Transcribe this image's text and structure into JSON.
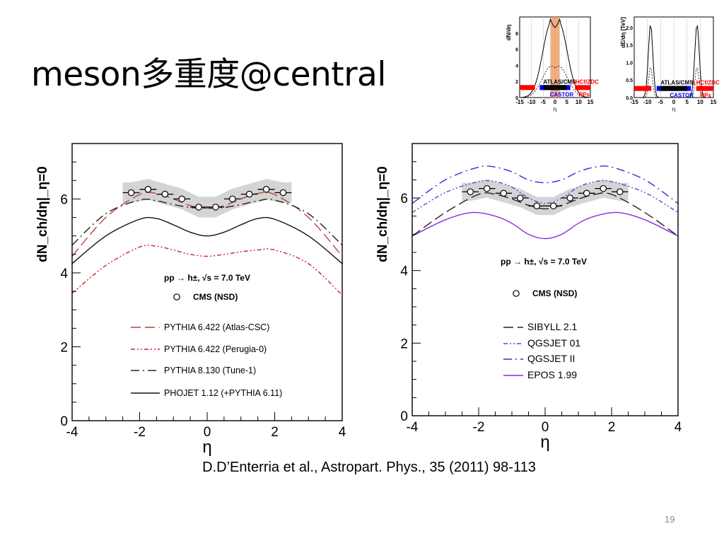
{
  "slide": {
    "title": "meson多重度@central",
    "caption": "D.D’Enterria et al., Astropart. Phys., 35 (2011) 98-113",
    "page_number": "19"
  },
  "inset": {
    "left": {
      "ylabel": "dN/dη",
      "xlabel": "η",
      "xticks": [
        "-15",
        "-10",
        "-5",
        "0",
        "5",
        "10",
        "15"
      ],
      "yticks": [
        "0",
        "2",
        "4",
        "6",
        "8"
      ],
      "labels": [
        "ATLAS/CMS",
        "LHCf/ZDC",
        "CASTOR",
        "RPs"
      ]
    },
    "right": {
      "ylabel": "dE/dη [TeV]",
      "xlabel": "η",
      "xticks": [
        "-15",
        "-10",
        "-5",
        "0",
        "5",
        "10",
        "15"
      ],
      "yticks": [
        "0.0",
        "0.5",
        "1.0",
        "1.5",
        "2.0"
      ],
      "labels": [
        "ATLAS/CMS",
        "LHCf/ZDC",
        "CASTOR",
        "RPs"
      ]
    },
    "colors": {
      "central_band": "#e8955a",
      "forward": "#ff0000",
      "castor": "#0000ff",
      "central": "#000000"
    }
  },
  "chart_data": [
    {
      "type": "line",
      "xlabel": "η",
      "ylabel": "dN_ch/dη|_η=0",
      "xlim": [
        -4,
        4
      ],
      "ylim": [
        0,
        7.5
      ],
      "xticks": [
        "-4",
        "-2",
        "0",
        "2",
        "4"
      ],
      "yticks": [
        "0",
        "2",
        "4",
        "6"
      ],
      "annotation": "pp → h±, √s = 7.0 TeV",
      "data_series": {
        "name": "CMS (NSD)",
        "x": [
          -2.25,
          -1.75,
          -1.25,
          -0.75,
          -0.25,
          0.25,
          0.75,
          1.25,
          1.75,
          2.25
        ],
        "y": [
          6.17,
          6.26,
          6.13,
          6.0,
          5.78,
          5.78,
          6.0,
          6.13,
          6.26,
          6.17
        ],
        "band": 0.28
      },
      "series": [
        {
          "name": "PYTHIA 6.422 (Atlas-CSC)",
          "color": "#b5473a",
          "style": "long-dash",
          "x": [
            -4,
            -3,
            -2,
            -1.5,
            -1,
            -0.5,
            0,
            0.5,
            1,
            1.5,
            2,
            3,
            4
          ],
          "y": [
            4.45,
            5.5,
            6.12,
            6.15,
            6.0,
            5.82,
            5.75,
            5.82,
            6.0,
            6.15,
            6.12,
            5.5,
            4.45
          ]
        },
        {
          "name": "PYTHIA 6.422 (Perugia-0)",
          "color": "#d0202a",
          "style": "dash-dot-dot",
          "x": [
            -4,
            -3,
            -2,
            -1.5,
            -1,
            -0.5,
            0,
            0.5,
            1,
            1.5,
            2,
            3,
            4
          ],
          "y": [
            3.45,
            4.2,
            4.7,
            4.72,
            4.62,
            4.5,
            4.45,
            4.5,
            4.57,
            4.62,
            4.62,
            4.25,
            3.4
          ]
        },
        {
          "name": "PYTHIA 8.130 (Tune-1)",
          "color": "#222222",
          "style": "dash-dot",
          "x": [
            -4,
            -3,
            -2,
            -1.5,
            -1,
            -0.5,
            0,
            0.5,
            1,
            1.5,
            2,
            3,
            4
          ],
          "y": [
            4.75,
            5.6,
            5.97,
            5.95,
            5.85,
            5.77,
            5.75,
            5.77,
            5.85,
            5.95,
            5.97,
            5.6,
            4.75
          ]
        },
        {
          "name": "PHOJET 1.12 (+PYTHIA 6.11)",
          "color": "#111111",
          "style": "solid",
          "x": [
            -4,
            -3,
            -2,
            -1.5,
            -1,
            -0.5,
            0,
            0.5,
            1,
            1.5,
            2,
            3,
            4
          ],
          "y": [
            4.25,
            5.0,
            5.45,
            5.47,
            5.3,
            5.1,
            5.0,
            5.1,
            5.3,
            5.47,
            5.45,
            5.0,
            4.25
          ]
        }
      ]
    },
    {
      "type": "line",
      "xlabel": "η",
      "ylabel": "dN_ch/dη|_η=0",
      "xlim": [
        -4,
        4
      ],
      "ylim": [
        0,
        7.5
      ],
      "xticks": [
        "-4",
        "-2",
        "0",
        "2",
        "4"
      ],
      "yticks": [
        "0",
        "2",
        "4",
        "6"
      ],
      "annotation": "pp → h±, √s = 7.0 TeV",
      "data_series": {
        "name": "CMS (NSD)",
        "x": [
          -2.25,
          -1.75,
          -1.25,
          -0.75,
          -0.25,
          0.25,
          0.75,
          1.25,
          1.75,
          2.25
        ],
        "y": [
          6.17,
          6.26,
          6.13,
          6.0,
          5.78,
          5.78,
          6.0,
          6.13,
          6.26,
          6.17
        ],
        "band": 0.25
      },
      "series": [
        {
          "name": "SIBYLL 2.1",
          "color": "#222222",
          "style": "long-dash",
          "x": [
            -4,
            -3,
            -2,
            -1.5,
            -1,
            -0.5,
            0,
            0.5,
            1,
            1.5,
            2,
            3,
            4
          ],
          "y": [
            4.95,
            5.6,
            6.1,
            6.1,
            5.97,
            5.8,
            5.7,
            5.8,
            5.97,
            6.1,
            6.1,
            5.6,
            4.95
          ]
        },
        {
          "name": "QGSJET 01",
          "color": "#5a4ad0",
          "style": "dash-dot-dot",
          "x": [
            -4,
            -3,
            -2,
            -1.5,
            -1,
            -0.5,
            0,
            0.5,
            1,
            1.5,
            2,
            3,
            4
          ],
          "y": [
            5.6,
            6.15,
            6.45,
            6.45,
            6.3,
            6.0,
            5.85,
            6.0,
            6.3,
            6.45,
            6.45,
            6.15,
            5.6
          ]
        },
        {
          "name": "QGSJET II",
          "color": "#3a2ad8",
          "style": "dash-dot",
          "x": [
            -4,
            -3,
            -2,
            -1.5,
            -1,
            -0.5,
            0,
            0.5,
            1,
            1.5,
            2,
            3,
            4
          ],
          "y": [
            5.85,
            6.5,
            6.85,
            6.85,
            6.72,
            6.5,
            6.42,
            6.5,
            6.72,
            6.85,
            6.85,
            6.5,
            5.85
          ]
        },
        {
          "name": "EPOS 1.99",
          "color": "#8a2be2",
          "style": "solid",
          "x": [
            -4,
            -3,
            -2.2,
            -1.5,
            -1,
            -0.5,
            0,
            0.5,
            1,
            1.5,
            2.2,
            3,
            4
          ],
          "y": [
            4.95,
            5.4,
            5.6,
            5.5,
            5.3,
            5.0,
            4.88,
            5.0,
            5.3,
            5.5,
            5.6,
            5.4,
            4.95
          ]
        }
      ]
    }
  ]
}
